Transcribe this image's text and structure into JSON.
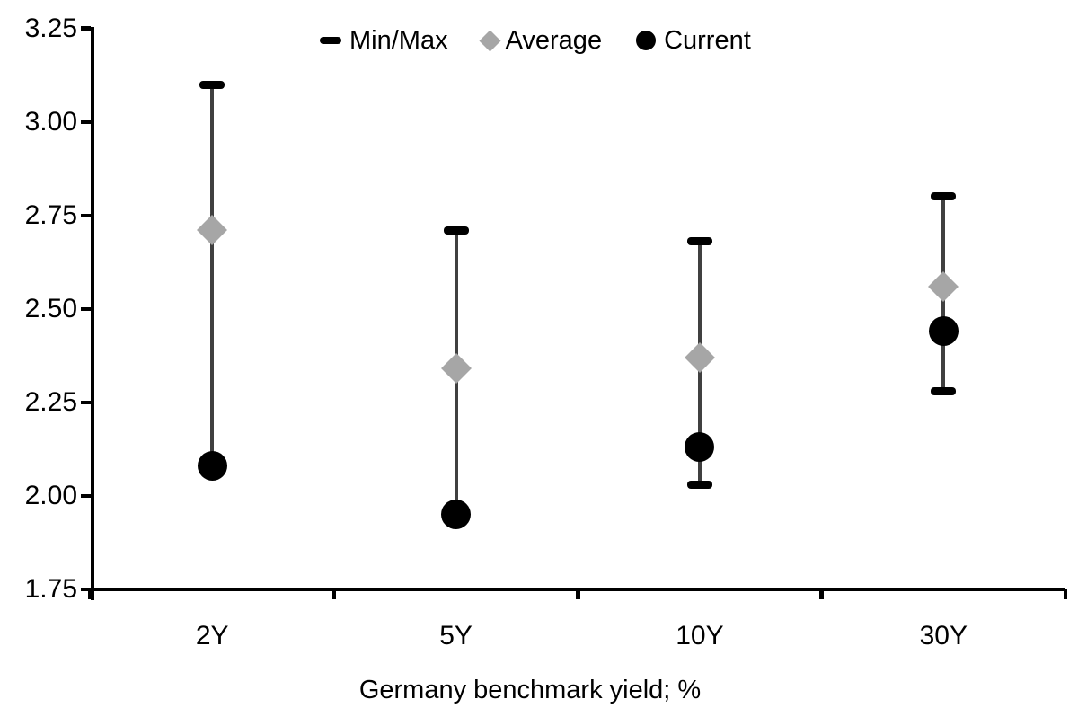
{
  "colors": {
    "range_line": "#404040",
    "range_cap": "#000000",
    "average": "#a6a6a6",
    "current": "#000000",
    "axis": "#000000",
    "text": "#000000"
  },
  "chart_data": {
    "type": "scatter",
    "subtype": "min-max-range-with-points",
    "title": "",
    "xlabel": "Germany benchmark yield; %",
    "ylabel": "",
    "categories": [
      "2Y",
      "5Y",
      "10Y",
      "30Y"
    ],
    "ylim": [
      1.75,
      3.25
    ],
    "ytick_step": 0.25,
    "ytick_labels": [
      "3.25",
      "3.00",
      "2.75",
      "2.50",
      "2.25",
      "2.00",
      "1.75"
    ],
    "grid": false,
    "legend_position": "top-center",
    "series": [
      {
        "name": "Min/Max",
        "type": "range",
        "marker": "dash-capped-line",
        "min": [
          2.08,
          1.95,
          2.03,
          2.28
        ],
        "max": [
          3.1,
          2.71,
          2.68,
          2.8
        ]
      },
      {
        "name": "Average",
        "type": "point",
        "marker": "diamond",
        "values": [
          2.71,
          2.34,
          2.37,
          2.56
        ]
      },
      {
        "name": "Current",
        "type": "point",
        "marker": "circle",
        "values": [
          2.08,
          1.95,
          2.13,
          2.44
        ]
      }
    ]
  }
}
